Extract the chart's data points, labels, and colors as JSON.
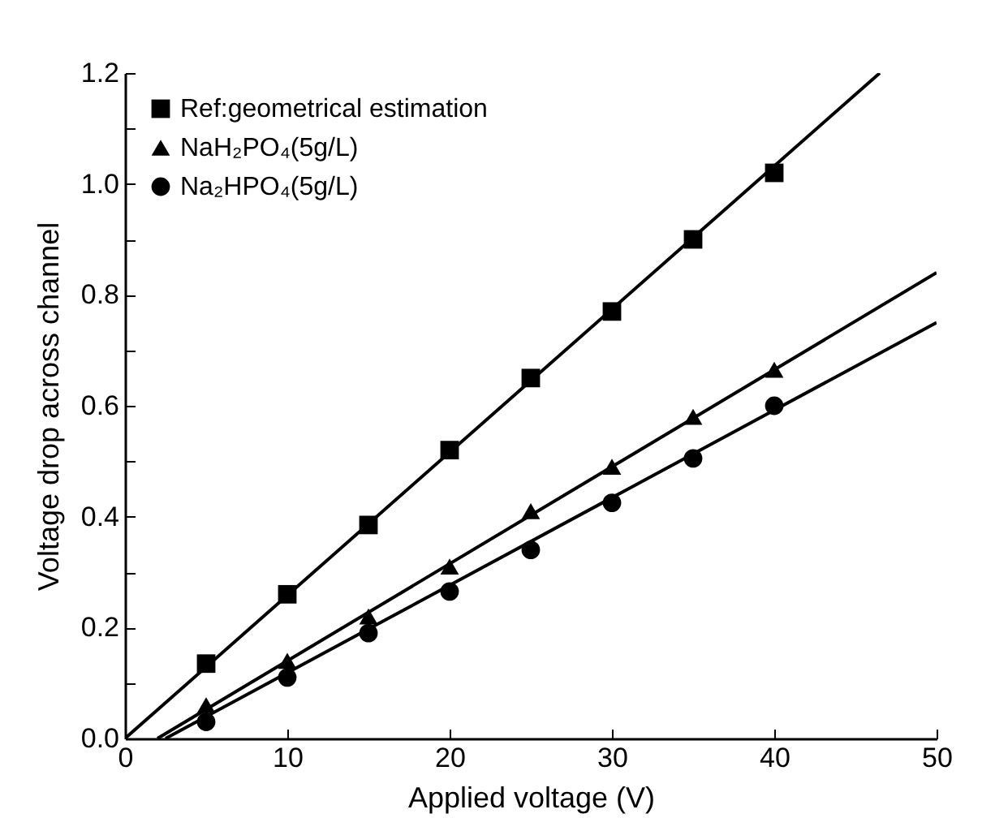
{
  "chart_data": {
    "type": "scatter",
    "xlabel": "Applied voltage (V)",
    "ylabel": "Voltage drop across channel",
    "x": [
      5,
      10,
      15,
      20,
      25,
      30,
      35,
      40
    ],
    "series": [
      {
        "name": "Ref:geometrical estimation",
        "color": "#000000",
        "marker": "square",
        "values": [
          0.135,
          0.26,
          0.385,
          0.52,
          0.65,
          0.77,
          0.9,
          1.02
        ]
      },
      {
        "name": "NaH₂PO₄(5g/L)",
        "color": "#000000",
        "marker": "triangle",
        "values": [
          0.06,
          0.14,
          0.22,
          0.31,
          0.41,
          0.49,
          0.58,
          0.665
        ]
      },
      {
        "name": "Na₂HPO₄(5g/L)",
        "color": "#000000",
        "marker": "circle",
        "values": [
          0.03,
          0.11,
          0.19,
          0.265,
          0.34,
          0.425,
          0.505,
          0.6
        ]
      },
      {
        "type": "line",
        "color": "#000000",
        "marker": "none",
        "x": [
          0,
          46.5
        ],
        "values": [
          0,
          1.2
        ]
      },
      {
        "type": "line",
        "color": "#000000",
        "marker": "none",
        "x": [
          2,
          50
        ],
        "values": [
          0,
          0.84
        ]
      },
      {
        "type": "line",
        "color": "#000000",
        "marker": "none",
        "x": [
          2.5,
          50
        ],
        "values": [
          0,
          0.75
        ]
      }
    ],
    "xlim": [
      0,
      50
    ],
    "xticks": [
      0,
      10,
      20,
      30,
      40,
      50
    ],
    "ylim": [
      0,
      1.2
    ],
    "yticks": [
      {
        "value": 0,
        "label": "0.0"
      },
      {
        "value": 0.1,
        "label": null
      },
      {
        "value": 0.2,
        "label": "0.2"
      },
      {
        "value": 0.3,
        "label": null
      },
      {
        "value": 0.4,
        "label": "0.4"
      },
      {
        "value": 0.5,
        "label": null
      },
      {
        "value": 0.6,
        "label": "0.6"
      },
      {
        "value": 0.7,
        "label": null
      },
      {
        "value": 0.8,
        "label": "0.8"
      },
      {
        "value": 0.9,
        "label": null
      },
      {
        "value": 1.0,
        "label": "1.0"
      },
      {
        "value": 1.1,
        "label": null
      },
      {
        "value": 1.2,
        "label": "1.2"
      }
    ],
    "grid": false,
    "legend": "top left"
  }
}
